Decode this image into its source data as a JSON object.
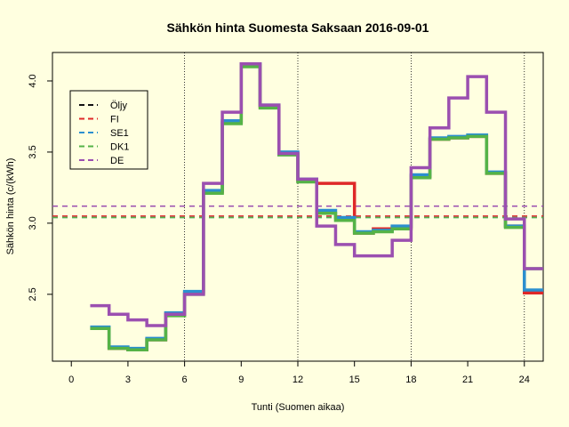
{
  "chart_data": {
    "type": "line",
    "step": true,
    "title": "Sähkön hinta Suomesta Saksaan 2016-09-01",
    "xlabel": "Tunti (Suomen aikaa)",
    "ylabel": "Sähkön hinta (c/(kWh)",
    "xlim": [
      -1,
      25
    ],
    "ylim": [
      2.03,
      4.2
    ],
    "xticks": [
      0,
      3,
      6,
      9,
      12,
      15,
      18,
      21,
      24
    ],
    "yticks": [
      2.5,
      3.0,
      3.5,
      4.0
    ],
    "xtick_labels": [
      "0",
      "3",
      "6",
      "9",
      "12",
      "15",
      "18",
      "21",
      "24"
    ],
    "ytick_labels": [
      "2.5",
      "3.0",
      "3.5",
      "4.0"
    ],
    "vlines": [
      6,
      12,
      18,
      24
    ],
    "grid": false,
    "legend_position": "top-left",
    "x": [
      1,
      2,
      3,
      4,
      5,
      6,
      7,
      8,
      9,
      10,
      11,
      12,
      13,
      14,
      15,
      16,
      17,
      18,
      19,
      20,
      21,
      22,
      23,
      24,
      25
    ],
    "series": [
      {
        "name": "FI",
        "color": "#df2828",
        "mean": 3.05,
        "values": [
          2.26,
          2.12,
          2.11,
          2.18,
          2.36,
          2.51,
          3.22,
          3.71,
          4.11,
          3.82,
          3.49,
          3.3,
          3.28,
          3.28,
          2.93,
          2.96,
          2.97,
          3.33,
          3.59,
          3.6,
          3.61,
          3.35,
          2.98,
          2.51,
          2.51
        ]
      },
      {
        "name": "SE1",
        "color": "#2b8fcf",
        "mean": 3.04,
        "values": [
          2.27,
          2.13,
          2.12,
          2.19,
          2.37,
          2.52,
          3.23,
          3.72,
          4.12,
          3.83,
          3.5,
          3.31,
          3.09,
          3.04,
          2.94,
          2.95,
          2.98,
          3.34,
          3.6,
          3.61,
          3.62,
          3.36,
          2.98,
          2.53,
          2.53
        ]
      },
      {
        "name": "DK1",
        "color": "#55b347",
        "mean": 3.04,
        "values": [
          2.26,
          2.12,
          2.11,
          2.18,
          2.35,
          2.5,
          3.21,
          3.7,
          4.1,
          3.81,
          3.48,
          3.29,
          3.07,
          3.02,
          2.93,
          2.94,
          2.96,
          3.32,
          3.59,
          3.6,
          3.61,
          3.35,
          2.97,
          2.68,
          2.68
        ]
      },
      {
        "name": "DE",
        "color": "#9b4fb0",
        "mean": 3.12,
        "values": [
          2.42,
          2.36,
          2.32,
          2.28,
          2.36,
          2.5,
          3.28,
          3.78,
          4.12,
          3.83,
          3.49,
          3.31,
          2.98,
          2.85,
          2.77,
          2.77,
          2.88,
          3.39,
          3.67,
          3.88,
          4.03,
          3.78,
          3.03,
          2.68,
          2.68
        ]
      }
    ],
    "legend": [
      {
        "name": "Öljy",
        "color": "#111111"
      },
      {
        "name": "FI",
        "color": "#df2828"
      },
      {
        "name": "SE1",
        "color": "#2b8fcf"
      },
      {
        "name": "DK1",
        "color": "#55b347"
      },
      {
        "name": "DE",
        "color": "#9b4fb0"
      }
    ]
  }
}
